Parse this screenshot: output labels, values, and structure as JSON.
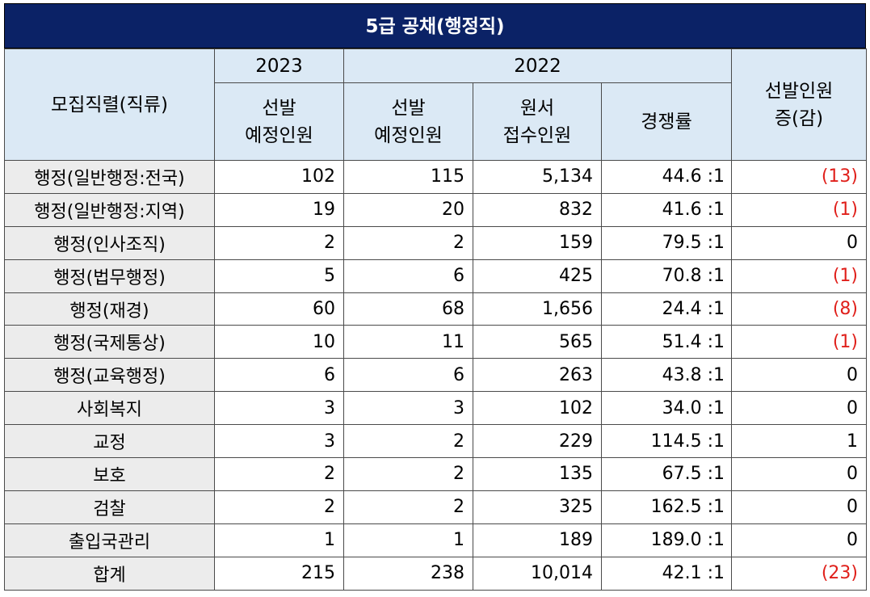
{
  "title": "5급 공채(행정직)",
  "headers": {
    "category": "모집직렬(직류)",
    "year_2023": "2023",
    "year_2022": "2022",
    "change_line1": "선발인원",
    "change_line2": "증(감)",
    "sub_2023_line1": "선발",
    "sub_2023_line2": "예정인원",
    "sub_2022_sel_line1": "선발",
    "sub_2022_sel_line2": "예정인원",
    "sub_2022_app_line1": "원서",
    "sub_2022_app_line2": "접수인원",
    "sub_2022_rate": "경쟁률"
  },
  "rows": [
    {
      "name": "행정(일반행정:전국)",
      "sel2023": "102",
      "sel2022": "115",
      "app2022": "5,134",
      "rate": "44.6 :1",
      "change": "(13)",
      "negative": true
    },
    {
      "name": "행정(일반행정:지역)",
      "sel2023": "19",
      "sel2022": "20",
      "app2022": "832",
      "rate": "41.6 :1",
      "change": "(1)",
      "negative": true
    },
    {
      "name": "행정(인사조직)",
      "sel2023": "2",
      "sel2022": "2",
      "app2022": "159",
      "rate": "79.5 :1",
      "change": "0",
      "negative": false
    },
    {
      "name": "행정(법무행정)",
      "sel2023": "5",
      "sel2022": "6",
      "app2022": "425",
      "rate": "70.8 :1",
      "change": "(1)",
      "negative": true
    },
    {
      "name": "행정(재경)",
      "sel2023": "60",
      "sel2022": "68",
      "app2022": "1,656",
      "rate": "24.4 :1",
      "change": "(8)",
      "negative": true
    },
    {
      "name": "행정(국제통상)",
      "sel2023": "10",
      "sel2022": "11",
      "app2022": "565",
      "rate": "51.4 :1",
      "change": "(1)",
      "negative": true
    },
    {
      "name": "행정(교육행정)",
      "sel2023": "6",
      "sel2022": "6",
      "app2022": "263",
      "rate": "43.8 :1",
      "change": "0",
      "negative": false
    },
    {
      "name": "사회복지",
      "sel2023": "3",
      "sel2022": "3",
      "app2022": "102",
      "rate": "34.0 :1",
      "change": "0",
      "negative": false
    },
    {
      "name": "교정",
      "sel2023": "3",
      "sel2022": "2",
      "app2022": "229",
      "rate": "114.5 :1",
      "change": "1",
      "negative": false
    },
    {
      "name": "보호",
      "sel2023": "2",
      "sel2022": "2",
      "app2022": "135",
      "rate": "67.5 :1",
      "change": "0",
      "negative": false
    },
    {
      "name": "검찰",
      "sel2023": "2",
      "sel2022": "2",
      "app2022": "325",
      "rate": "162.5 :1",
      "change": "0",
      "negative": false
    },
    {
      "name": "출입국관리",
      "sel2023": "1",
      "sel2022": "1",
      "app2022": "189",
      "rate": "189.0 :1",
      "change": "0",
      "negative": false
    },
    {
      "name": "합계",
      "sel2023": "215",
      "sel2022": "238",
      "app2022": "10,014",
      "rate": "42.1 :1",
      "change": "(23)",
      "negative": true
    }
  ],
  "colors": {
    "title_bg": "#0b2266",
    "header_bg": "#dbe9f5",
    "name_bg": "#ececec",
    "negative": "#e0201b"
  }
}
